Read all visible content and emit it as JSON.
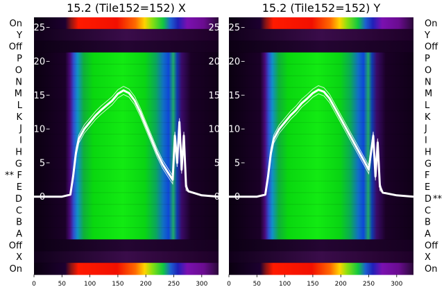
{
  "chart_data": [
    {
      "type": "heatmap",
      "title": "15.2 (Tile152=152) X",
      "marker_row": "F",
      "marker_side": "left",
      "x_ticks": [
        0,
        50,
        100,
        150,
        200,
        250,
        300
      ],
      "xlim": [
        0,
        330
      ],
      "y_ticks": [
        0,
        5,
        10,
        15,
        20,
        25
      ],
      "ylim": [
        -11.5,
        26.5
      ],
      "row_labels": [
        "On",
        "Y",
        "Off",
        "P",
        "O",
        "N",
        "M",
        "L",
        "K",
        "J",
        "I",
        "H",
        "G",
        "F",
        "E",
        "D",
        "C",
        "B",
        "A",
        "Off",
        "X",
        "On"
      ],
      "trace": {
        "color": "#ffffff",
        "x": [
          0,
          50,
          65,
          70,
          75,
          80,
          90,
          100,
          110,
          120,
          130,
          140,
          150,
          160,
          170,
          180,
          190,
          200,
          210,
          220,
          230,
          240,
          248,
          252,
          256,
          260,
          264,
          268,
          272,
          276,
          300,
          330
        ],
        "y": [
          0,
          0,
          0.3,
          3,
          6.5,
          8.5,
          10,
          11,
          12,
          12.8,
          13.5,
          14.2,
          15.2,
          15.7,
          15.3,
          14.2,
          12.5,
          10.5,
          8.5,
          6.5,
          4.8,
          3.5,
          2.5,
          9,
          5,
          11,
          4,
          9,
          1.5,
          0.8,
          0.2,
          0
        ]
      }
    },
    {
      "type": "heatmap",
      "title": "15.2 (Tile152=152) Y",
      "marker_row": "D",
      "marker_side": "right",
      "x_ticks": [
        0,
        50,
        100,
        150,
        200,
        250,
        300
      ],
      "xlim": [
        0,
        330
      ],
      "y_ticks": [
        0,
        5,
        10,
        15,
        20,
        25
      ],
      "ylim": [
        -11.5,
        26.5
      ],
      "row_labels": [
        "On",
        "Y",
        "Off",
        "P",
        "O",
        "N",
        "M",
        "L",
        "K",
        "J",
        "I",
        "H",
        "G",
        "F",
        "E",
        "D",
        "C",
        "B",
        "A",
        "Off",
        "X",
        "On"
      ],
      "trace": {
        "color": "#ffffff",
        "x": [
          0,
          50,
          65,
          70,
          75,
          80,
          90,
          100,
          110,
          120,
          130,
          140,
          150,
          160,
          170,
          180,
          190,
          200,
          210,
          220,
          230,
          240,
          250,
          258,
          262,
          266,
          270,
          275,
          300,
          330
        ],
        "y": [
          0,
          0,
          0.3,
          3,
          6.5,
          8.5,
          10,
          11,
          12,
          12.8,
          13.8,
          14.5,
          15.3,
          15.8,
          15.5,
          14.5,
          13,
          11.5,
          10,
          8.5,
          7,
          5.5,
          4,
          9,
          3,
          8,
          1.5,
          0.6,
          0.2,
          0
        ]
      }
    }
  ]
}
